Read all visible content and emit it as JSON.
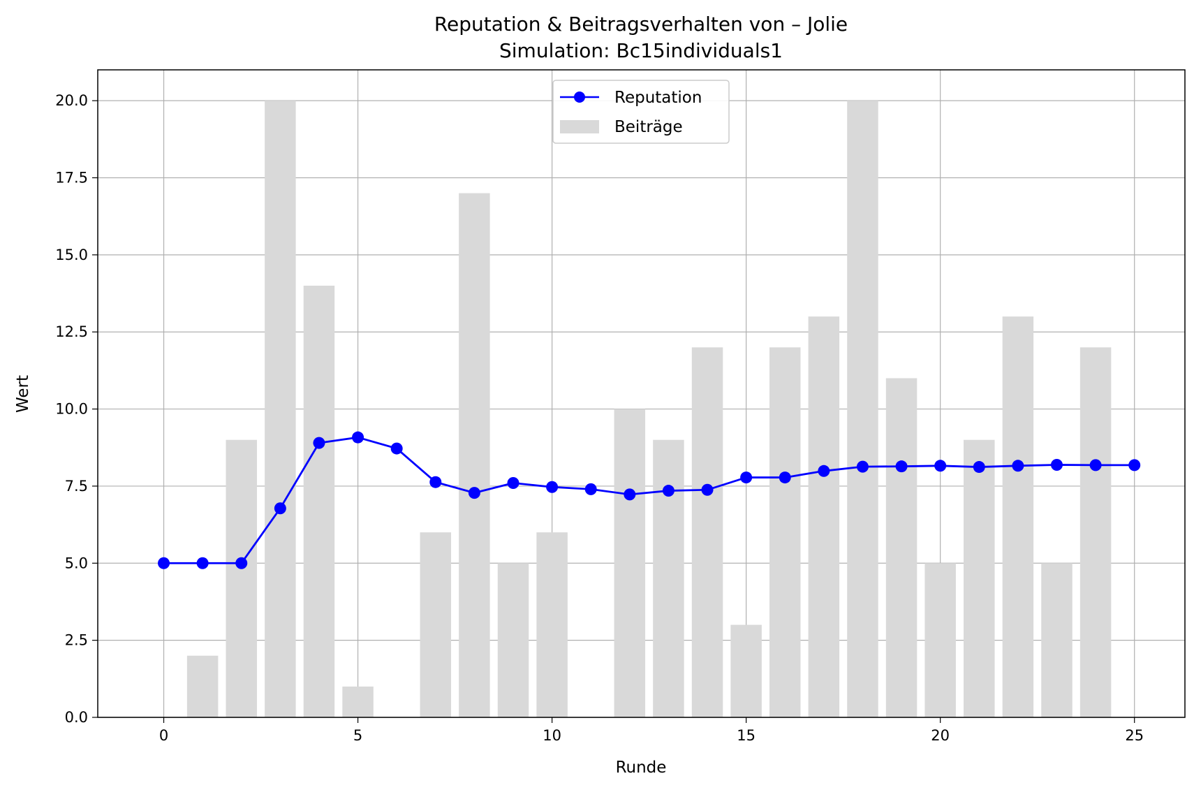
{
  "chart_data": {
    "type": "bar+line",
    "title": "Reputation & Beitragsverhalten von – Jolie",
    "subtitle": "Simulation: Bc15individuals1",
    "xlabel": "Runde",
    "ylabel": "Wert",
    "xlim": [
      -1.7,
      26.3
    ],
    "ylim": [
      0,
      21
    ],
    "xticks": [
      0,
      5,
      10,
      15,
      20,
      25
    ],
    "yticks": [
      0.0,
      2.5,
      5.0,
      7.5,
      10.0,
      12.5,
      15.0,
      17.5,
      20.0
    ],
    "ytick_labels": [
      "0.0",
      "2.5",
      "5.0",
      "7.5",
      "10.0",
      "12.5",
      "15.0",
      "17.5",
      "20.0"
    ],
    "grid": true,
    "legend_position": "upper center",
    "colors": {
      "reputation": "#0000ff",
      "contributions": "#d9d9d9",
      "grid": "#b0b0b0"
    },
    "series": [
      {
        "name": "Reputation",
        "kind": "line",
        "marker": "circle",
        "x": [
          0,
          1,
          2,
          3,
          4,
          5,
          6,
          7,
          8,
          9,
          10,
          11,
          12,
          13,
          14,
          15,
          16,
          17,
          18,
          19,
          20,
          21,
          22,
          23,
          24,
          25
        ],
        "values": [
          5.0,
          5.0,
          5.0,
          6.78,
          8.9,
          9.08,
          8.72,
          7.63,
          7.28,
          7.6,
          7.47,
          7.4,
          7.23,
          7.35,
          7.38,
          7.78,
          7.78,
          7.99,
          8.13,
          8.14,
          8.16,
          8.12,
          8.16,
          8.19,
          8.18,
          8.18
        ]
      },
      {
        "name": "Beiträge",
        "kind": "bar",
        "x": [
          1,
          2,
          3,
          4,
          5,
          7,
          8,
          9,
          10,
          12,
          13,
          14,
          15,
          16,
          17,
          18,
          19,
          20,
          21,
          22,
          23,
          24
        ],
        "values": [
          2,
          9,
          20,
          14,
          1,
          6,
          17,
          5,
          6,
          10,
          9,
          12,
          3,
          12,
          13,
          20,
          11,
          5,
          9,
          13,
          5,
          12
        ]
      }
    ]
  }
}
